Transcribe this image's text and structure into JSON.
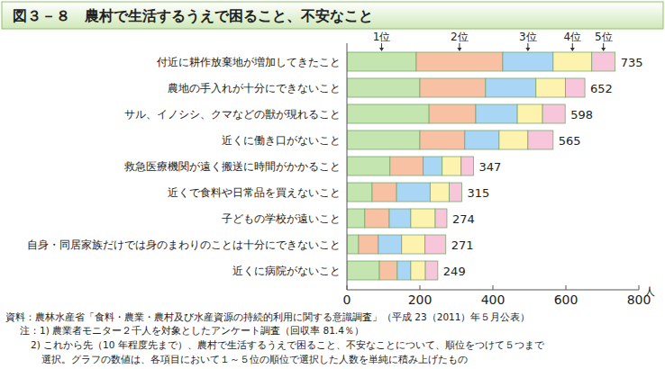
{
  "chart_data": {
    "type": "bar",
    "orientation": "horizontal",
    "stacked": true,
    "title": "図３－８　農村で生活するうえで困ること、不安なこと",
    "x_label": "人",
    "categories": [
      "付近に耕作放棄地が増加してきたこと",
      "農地の手入れが十分にできないこと",
      "サル、イノシシ、クマなどの獣が現れること",
      "近くに働き口がないこと",
      "救急医療機関が遠く搬送に時間がかかること",
      "近くで食料や日常品を買えないこと",
      "子どもの学校が遠いこと",
      "自身・同居家族だけでは身のまわりのことは十分にできないこと",
      "近くに病院がないこと"
    ],
    "series": [
      {
        "name": "1位",
        "color": "#c4e4b0",
        "values": [
          190,
          200,
          225,
          200,
          118,
          69,
          49,
          32,
          89
        ]
      },
      {
        "name": "2位",
        "color": "#f8c1a3",
        "values": [
          237,
          180,
          128,
          123,
          91,
          67,
          67,
          54,
          49
        ]
      },
      {
        "name": "3位",
        "color": "#a8d6f4",
        "values": [
          138,
          138,
          114,
          94,
          52,
          92,
          59,
          64,
          37
        ]
      },
      {
        "name": "4位",
        "color": "#fdf3ae",
        "values": [
          106,
          81,
          69,
          79,
          52,
          52,
          67,
          64,
          40
        ]
      },
      {
        "name": "5位",
        "color": "#f8c6da",
        "values": [
          64,
          53,
          62,
          69,
          34,
          35,
          32,
          57,
          34
        ]
      }
    ],
    "totals": [
      735,
      652,
      598,
      565,
      347,
      315,
      274,
      271,
      249
    ],
    "xlim": [
      0,
      800
    ],
    "xticks": [
      0,
      200,
      400,
      600,
      800
    ],
    "grid": false,
    "source": "資料：農林水産省「食料・農業・農村及び水産資源の持続的利用に関する意識調査」（平成 23（2011）年５月公表）",
    "notes": [
      "注：1) 農業者モニター２千人を対象としたアンケート調査（回収率 81.4％）",
      "2) これから先（10 年程度先まで）、農村で生活するうえで困ること、不安なことについて、順位をつけて５つまで",
      "選択。グラフの数値は、各項目において１～５位の順位で選択した人数を単純に積み上げたもの"
    ]
  }
}
